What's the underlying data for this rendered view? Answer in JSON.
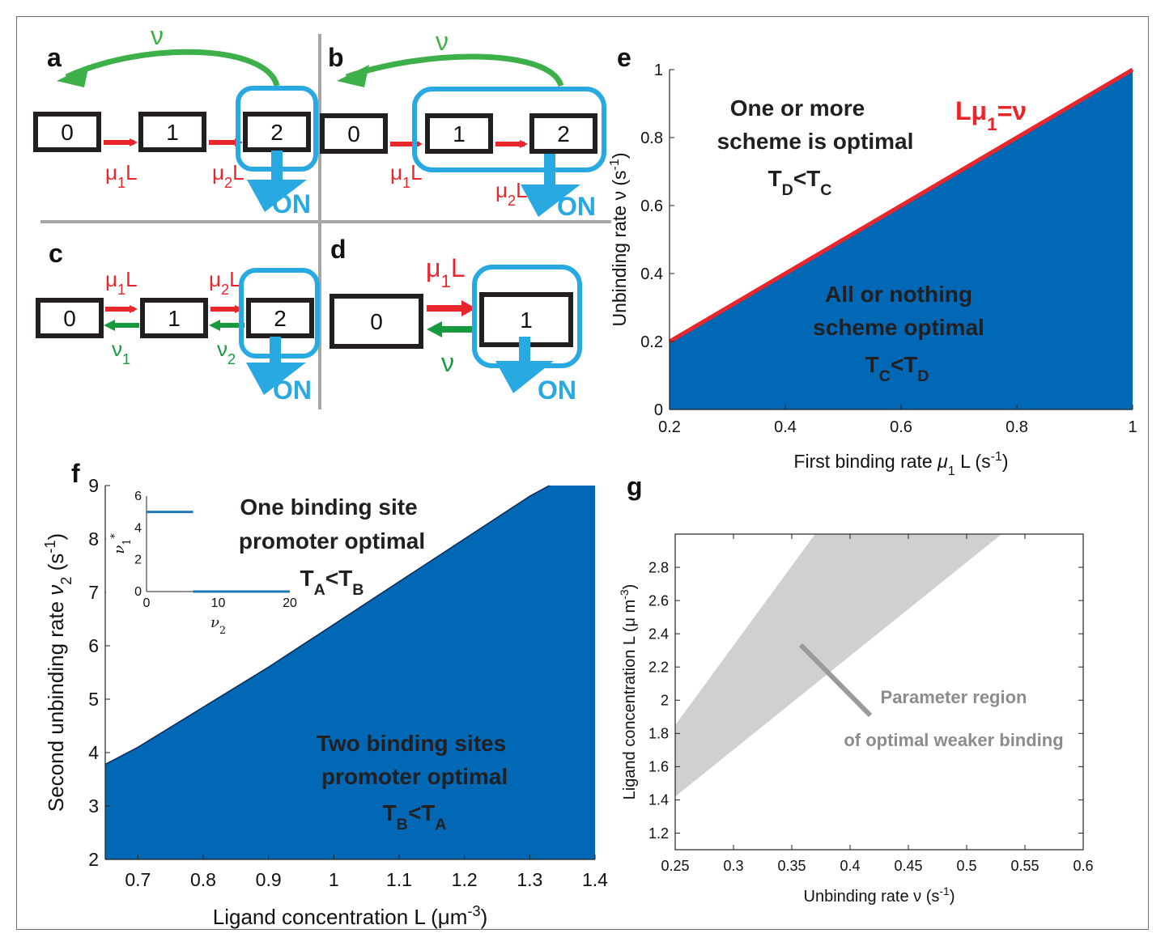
{
  "panels": {
    "a": {
      "label": "a",
      "states": [
        "0",
        "1",
        "2"
      ],
      "forward_rates": [
        "μ1L",
        "μ2L"
      ],
      "return_rate": "ν",
      "output": "ON"
    },
    "b": {
      "label": "b",
      "states": [
        "0",
        "1",
        "2"
      ],
      "forward_rates": [
        "μ1L",
        "μ2L"
      ],
      "return_rate": "ν",
      "output": "ON"
    },
    "c": {
      "label": "c",
      "states": [
        "0",
        "1",
        "2"
      ],
      "forward_rates": [
        "μ1L",
        "μ2L"
      ],
      "backward_rates": [
        "ν1",
        "ν2"
      ],
      "output": "ON"
    },
    "d": {
      "label": "d",
      "states": [
        "0",
        "1"
      ],
      "forward_rate": "μ1L",
      "backward_rate": "ν",
      "output": "ON"
    },
    "e": {
      "label": "e",
      "line_label": "Lμ1=ν",
      "upper_region": [
        "One or more",
        "scheme is optimal",
        "TD<TC"
      ],
      "lower_region": [
        "All or nothing",
        "scheme optimal",
        "TC<TD"
      ]
    },
    "f": {
      "label": "f",
      "upper_region": [
        "One binding site",
        "promoter optimal",
        "TA<TB"
      ],
      "lower_region": [
        "Two binding sites",
        "promoter optimal",
        "TB<TA"
      ]
    },
    "g": {
      "label": "g",
      "annotation": [
        "Parameter region",
        "of optimal weaker binding"
      ]
    }
  },
  "colors": {
    "state_box": "#231f20",
    "forward_arrow": "#e8262b",
    "backward_arrow": "#179a3e",
    "output": "#29a9e1",
    "region_fill": "#0068b4",
    "threshold_line": "#e8262b",
    "gray_region": "#d0d0d0",
    "annotation_gray": "#8c8c8c"
  },
  "chart_data": [
    {
      "panel": "e",
      "type": "area",
      "xlabel": "First binding rate μ1 L (s-1)",
      "ylabel": "Unbinding rate ν (s-1)",
      "xlim": [
        0.2,
        1
      ],
      "ylim": [
        0,
        1
      ],
      "xticks": [
        "0.2",
        "0.4",
        "0.6",
        "0.8",
        "1"
      ],
      "yticks": [
        "0",
        "0.2",
        "0.4",
        "0.6",
        "0.8",
        "1"
      ],
      "boundary": {
        "x": [
          0.2,
          1
        ],
        "y": [
          0.2,
          1
        ]
      },
      "fill": "below boundary",
      "grid": false
    },
    {
      "panel": "f",
      "type": "area",
      "xlabel": "Ligand concentration L (μm-3)",
      "ylabel": "Second unbinding rate ν2 (s-1)",
      "xlim": [
        0.65,
        1.4
      ],
      "ylim": [
        2,
        9
      ],
      "xticks": [
        "0.7",
        "0.8",
        "0.9",
        "1",
        "1.1",
        "1.2",
        "1.3",
        "1.4"
      ],
      "yticks": [
        "2",
        "3",
        "4",
        "5",
        "6",
        "7",
        "8",
        "9"
      ],
      "boundary": {
        "x": [
          0.65,
          0.7,
          0.8,
          0.9,
          1.0,
          1.1,
          1.2,
          1.3,
          1.33
        ],
        "y": [
          3.78,
          4.1,
          4.85,
          5.6,
          6.4,
          7.2,
          8.0,
          8.8,
          9.0
        ]
      },
      "fill": "below boundary",
      "grid": false,
      "inset": {
        "type": "line",
        "xlabel": "ν2",
        "ylabel": "ν1*",
        "xlim": [
          0,
          20
        ],
        "ylim": [
          0,
          6
        ],
        "xticks": [
          "0",
          "10",
          "20"
        ],
        "yticks": [
          "0",
          "2",
          "4",
          "6"
        ],
        "segments": [
          {
            "x": [
              0,
              6.5
            ],
            "y": [
              5,
              5
            ]
          },
          {
            "x": [
              6.5,
              20
            ],
            "y": [
              0,
              0
            ]
          }
        ]
      }
    },
    {
      "panel": "g",
      "type": "area",
      "xlabel": "Unbinding rate ν (s-1)",
      "ylabel": "Ligand concentration L (μ m-3)",
      "xlim": [
        0.25,
        0.6
      ],
      "ylim": [
        1.1,
        3.0
      ],
      "xticks": [
        "0.25",
        "0.3",
        "0.35",
        "0.4",
        "0.45",
        "0.5",
        "0.55",
        "0.6"
      ],
      "yticks": [
        "1.2",
        "1.4",
        "1.6",
        "1.8",
        "2",
        "2.2",
        "2.4",
        "2.6",
        "2.8"
      ],
      "upper_boundary": {
        "x": [
          0.25,
          0.37
        ],
        "y": [
          1.85,
          3.0
        ]
      },
      "lower_boundary": {
        "x": [
          0.25,
          0.53
        ],
        "y": [
          1.42,
          3.0
        ]
      },
      "fill": "between boundaries",
      "grid": false
    }
  ]
}
